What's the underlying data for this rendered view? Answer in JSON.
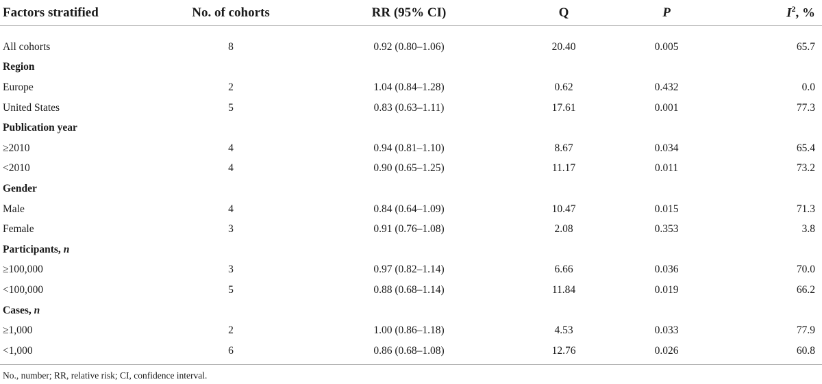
{
  "table": {
    "headers": {
      "factors": "Factors stratified",
      "cohorts": "No. of cohorts",
      "rr": "RR (95% CI)",
      "q": "Q",
      "p": "P",
      "i2_letter": "I",
      "i2_sup": "2",
      "i2_suffix": ", %"
    },
    "rows": [
      {
        "label": "All cohorts",
        "cohorts": "8",
        "rr": "0.92 (0.80–1.06)",
        "q": "20.40",
        "p": "0.005",
        "i2": "65.7"
      },
      {
        "group": "Region"
      },
      {
        "label": "Europe",
        "cohorts": "2",
        "rr": "1.04 (0.84–1.28)",
        "q": "0.62",
        "p": "0.432",
        "i2": "0.0"
      },
      {
        "label": "United States",
        "cohorts": "5",
        "rr": "0.83 (0.63–1.11)",
        "q": "17.61",
        "p": "0.001",
        "i2": "77.3"
      },
      {
        "group": "Publication year"
      },
      {
        "label": "≥2010",
        "cohorts": "4",
        "rr": "0.94 (0.81–1.10)",
        "q": "8.67",
        "p": "0.034",
        "i2": "65.4"
      },
      {
        "label": "<2010",
        "cohorts": "4",
        "rr": "0.90 (0.65–1.25)",
        "q": "11.17",
        "p": "0.011",
        "i2": "73.2"
      },
      {
        "group": "Gender"
      },
      {
        "label": "Male",
        "cohorts": "4",
        "rr": "0.84 (0.64–1.09)",
        "q": "10.47",
        "p": "0.015",
        "i2": "71.3"
      },
      {
        "label": "Female",
        "cohorts": "3",
        "rr": "0.91 (0.76–1.08)",
        "q": "2.08",
        "p": "0.353",
        "i2": "3.8"
      },
      {
        "group": "Participants, ",
        "group_italic": "n"
      },
      {
        "label": "≥100,000",
        "cohorts": "3",
        "rr": "0.97 (0.82–1.14)",
        "q": "6.66",
        "p": "0.036",
        "i2": "70.0"
      },
      {
        "label": "<100,000",
        "cohorts": "5",
        "rr": "0.88 (0.68–1.14)",
        "q": "11.84",
        "p": "0.019",
        "i2": "66.2"
      },
      {
        "group": "Cases, ",
        "group_italic": "n"
      },
      {
        "label": "≥1,000",
        "cohorts": "2",
        "rr": "1.00 (0.86–1.18)",
        "q": "4.53",
        "p": "0.033",
        "i2": "77.9"
      },
      {
        "label": "<1,000",
        "cohorts": "6",
        "rr": "0.86 (0.68–1.08)",
        "q": "12.76",
        "p": "0.026",
        "i2": "60.8"
      }
    ]
  },
  "footnote": "No., number; RR, relative risk; CI, confidence interval."
}
